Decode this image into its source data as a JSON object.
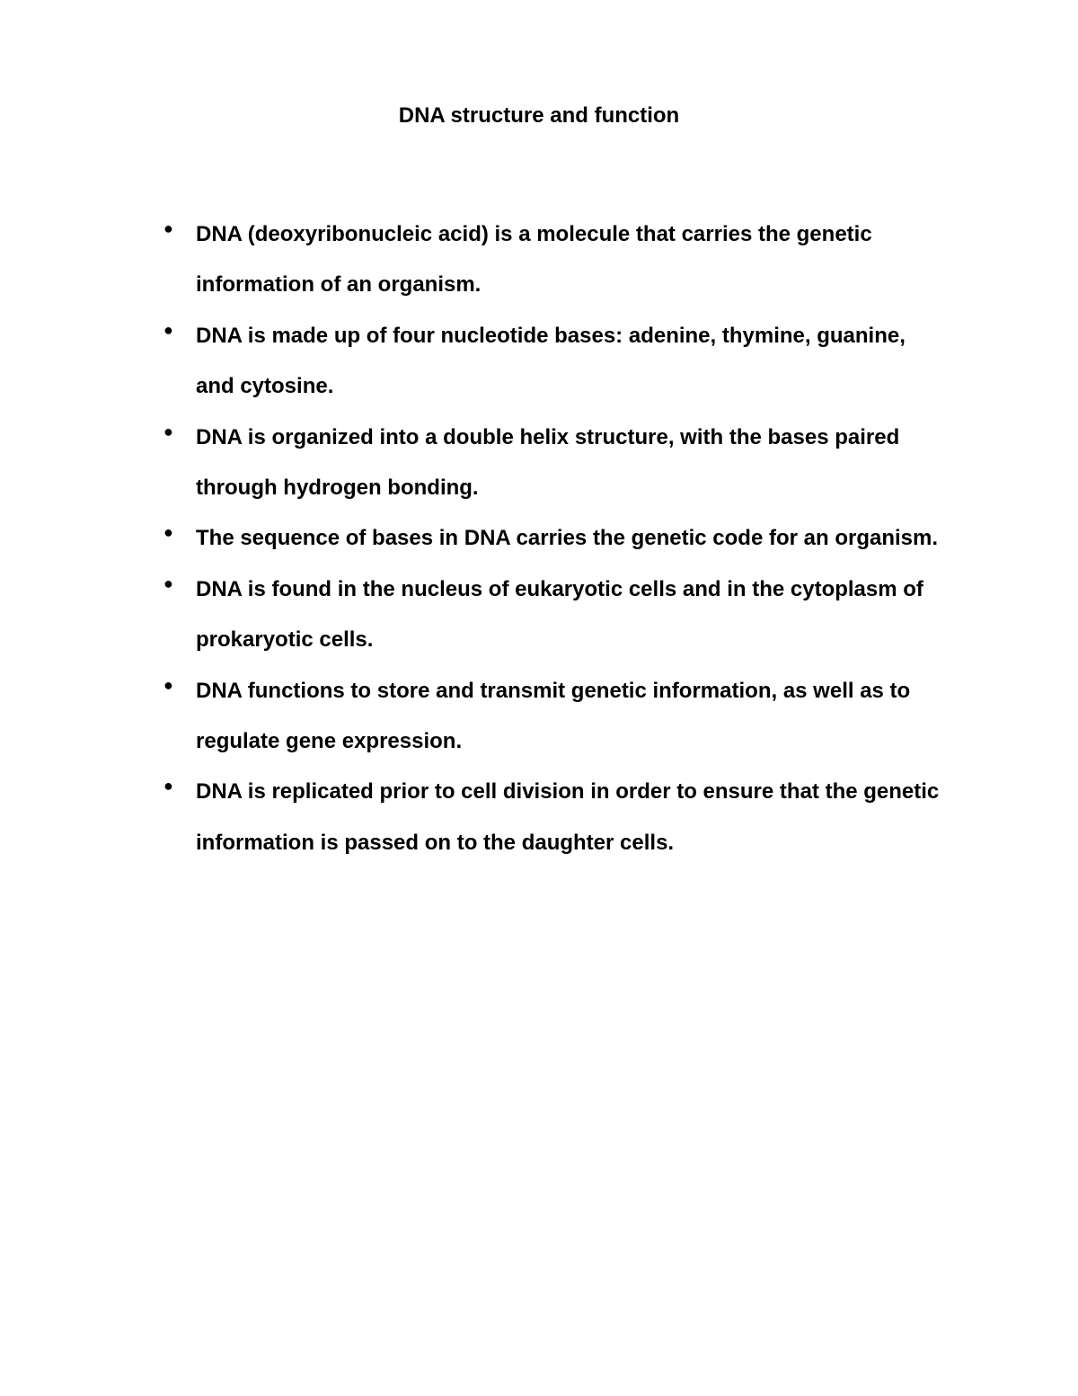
{
  "document": {
    "title": "DNA structure and function",
    "title_fontsize": 24,
    "title_fontweight": "bold",
    "title_color": "#000000",
    "background_color": "#ffffff",
    "text_color": "#000000",
    "body_fontsize": 24,
    "body_fontweight": "bold",
    "line_height": 2.35,
    "bullets": [
      "DNA (deoxyribonucleic acid) is a molecule that carries the genetic information of an organism.",
      "DNA is made up of four nucleotide bases: adenine, thymine, guanine, and cytosine.",
      "DNA is organized into a double helix structure, with the bases paired through hydrogen bonding.",
      "The sequence of bases in DNA carries the genetic code for an organism.",
      "DNA is found in the nucleus of eukaryotic cells and in the cytoplasm of prokaryotic cells.",
      "DNA functions to store and transmit genetic information, as well as to regulate gene expression.",
      "DNA is replicated prior to cell division in order to ensure that the genetic information is passed on to the daughter cells."
    ]
  }
}
